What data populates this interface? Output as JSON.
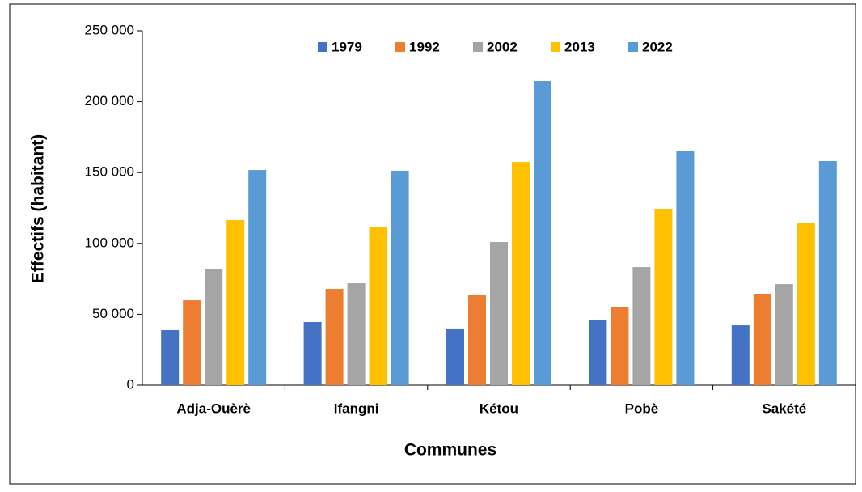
{
  "chart_data": {
    "type": "bar",
    "x_label": "Communes",
    "y_label": "Effectifs (habitant)",
    "categories": [
      "Adja-Ouèrè",
      "Ifangni",
      "Kétou",
      "Pobè",
      "Sakété"
    ],
    "series": [
      {
        "name": "1979",
        "color": "#4472c4",
        "values": [
          38800,
          44500,
          40000,
          45700,
          42200
        ]
      },
      {
        "name": "1992",
        "color": "#ed7d31",
        "values": [
          59900,
          67900,
          63400,
          54800,
          64500
        ]
      },
      {
        "name": "2002",
        "color": "#a5a5a5",
        "values": [
          82200,
          71900,
          101000,
          83300,
          71300
        ]
      },
      {
        "name": "2013",
        "color": "#ffc000",
        "values": [
          116400,
          111300,
          157500,
          124400,
          114700
        ]
      },
      {
        "name": "2022",
        "color": "#5b9bd5",
        "values": [
          151800,
          151300,
          214600,
          165000,
          158100
        ]
      }
    ],
    "ylim": [
      0,
      250000
    ],
    "yticks": [
      0,
      {
        "value": 50000,
        "label": "50 000"
      },
      {
        "value": 100000,
        "label": "100 000"
      },
      {
        "value": 150000,
        "label": "150 000"
      },
      {
        "value": 200000,
        "label": "200 000"
      },
      {
        "value": 250000,
        "label": "250 000"
      }
    ],
    "grid": false,
    "legend": "top"
  }
}
